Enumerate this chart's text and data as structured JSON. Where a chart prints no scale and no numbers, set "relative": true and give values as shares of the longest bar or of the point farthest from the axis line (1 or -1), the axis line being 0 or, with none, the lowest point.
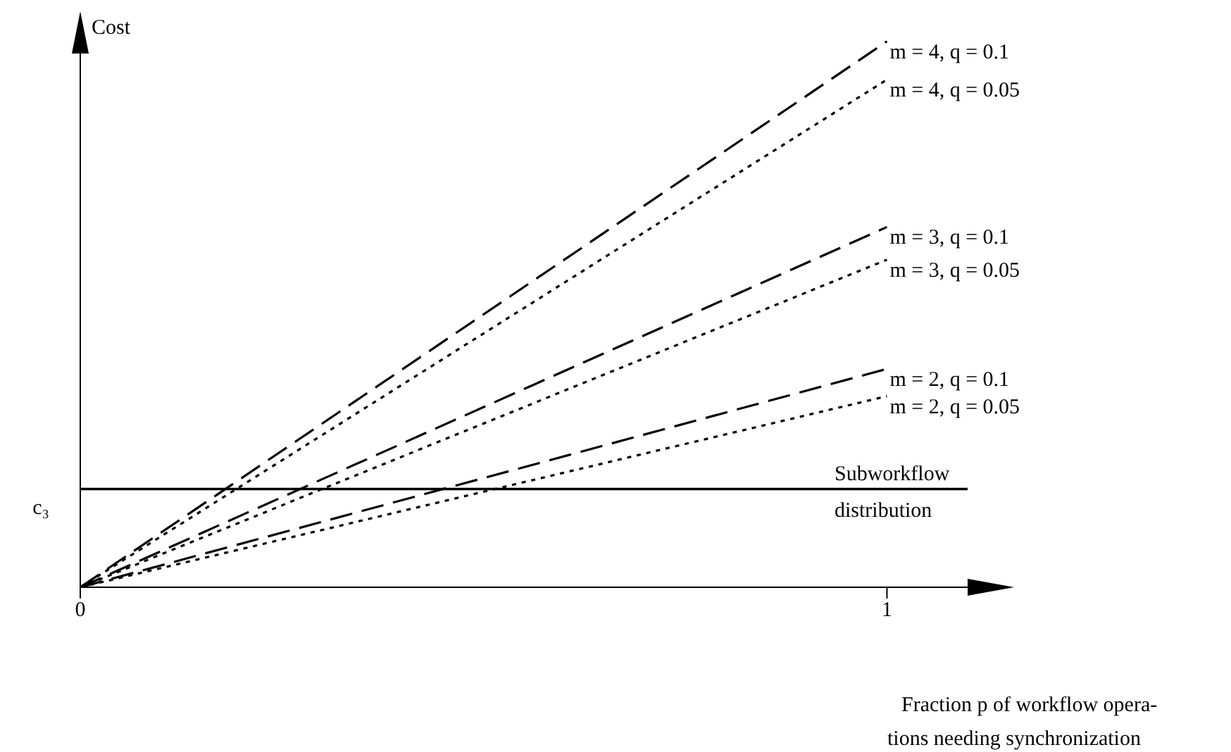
{
  "chart_data": {
    "type": "line",
    "relative": true,
    "xlabel": "Fraction p of workflow opera-\ntions needing synchronization",
    "ylabel": "Cost",
    "xlim": [
      0,
      1.1
    ],
    "xticks": [
      0,
      1
    ],
    "x": [
      0,
      1
    ],
    "series": [
      {
        "name": "m = 4, q = 0.1",
        "color": "#000000",
        "line_style": "dashed",
        "values": [
          0,
          1
        ]
      },
      {
        "name": "m = 4, q = 0.05",
        "color": "#000000",
        "line_style": "dotted",
        "values": [
          0,
          0.93
        ]
      },
      {
        "name": "m = 3, q = 0.1",
        "color": "#000000",
        "line_style": "dashed",
        "values": [
          0,
          0.66
        ]
      },
      {
        "name": "m = 3, q = 0.05",
        "color": "#000000",
        "line_style": "dotted",
        "values": [
          0,
          0.6
        ]
      },
      {
        "name": "m = 2, q = 0.1",
        "color": "#000000",
        "line_style": "dashed",
        "values": [
          0,
          0.4
        ]
      },
      {
        "name": "m = 2, q = 0.05",
        "color": "#000000",
        "line_style": "dotted",
        "values": [
          0,
          0.35
        ]
      }
    ],
    "ref_lines": [
      {
        "axis": "y",
        "value": 0.18,
        "label": "Subworkflow distribution",
        "color": "#000000"
      }
    ],
    "annotations": [
      {
        "text": "c₃",
        "x": 0,
        "y": 0.18
      }
    ]
  }
}
